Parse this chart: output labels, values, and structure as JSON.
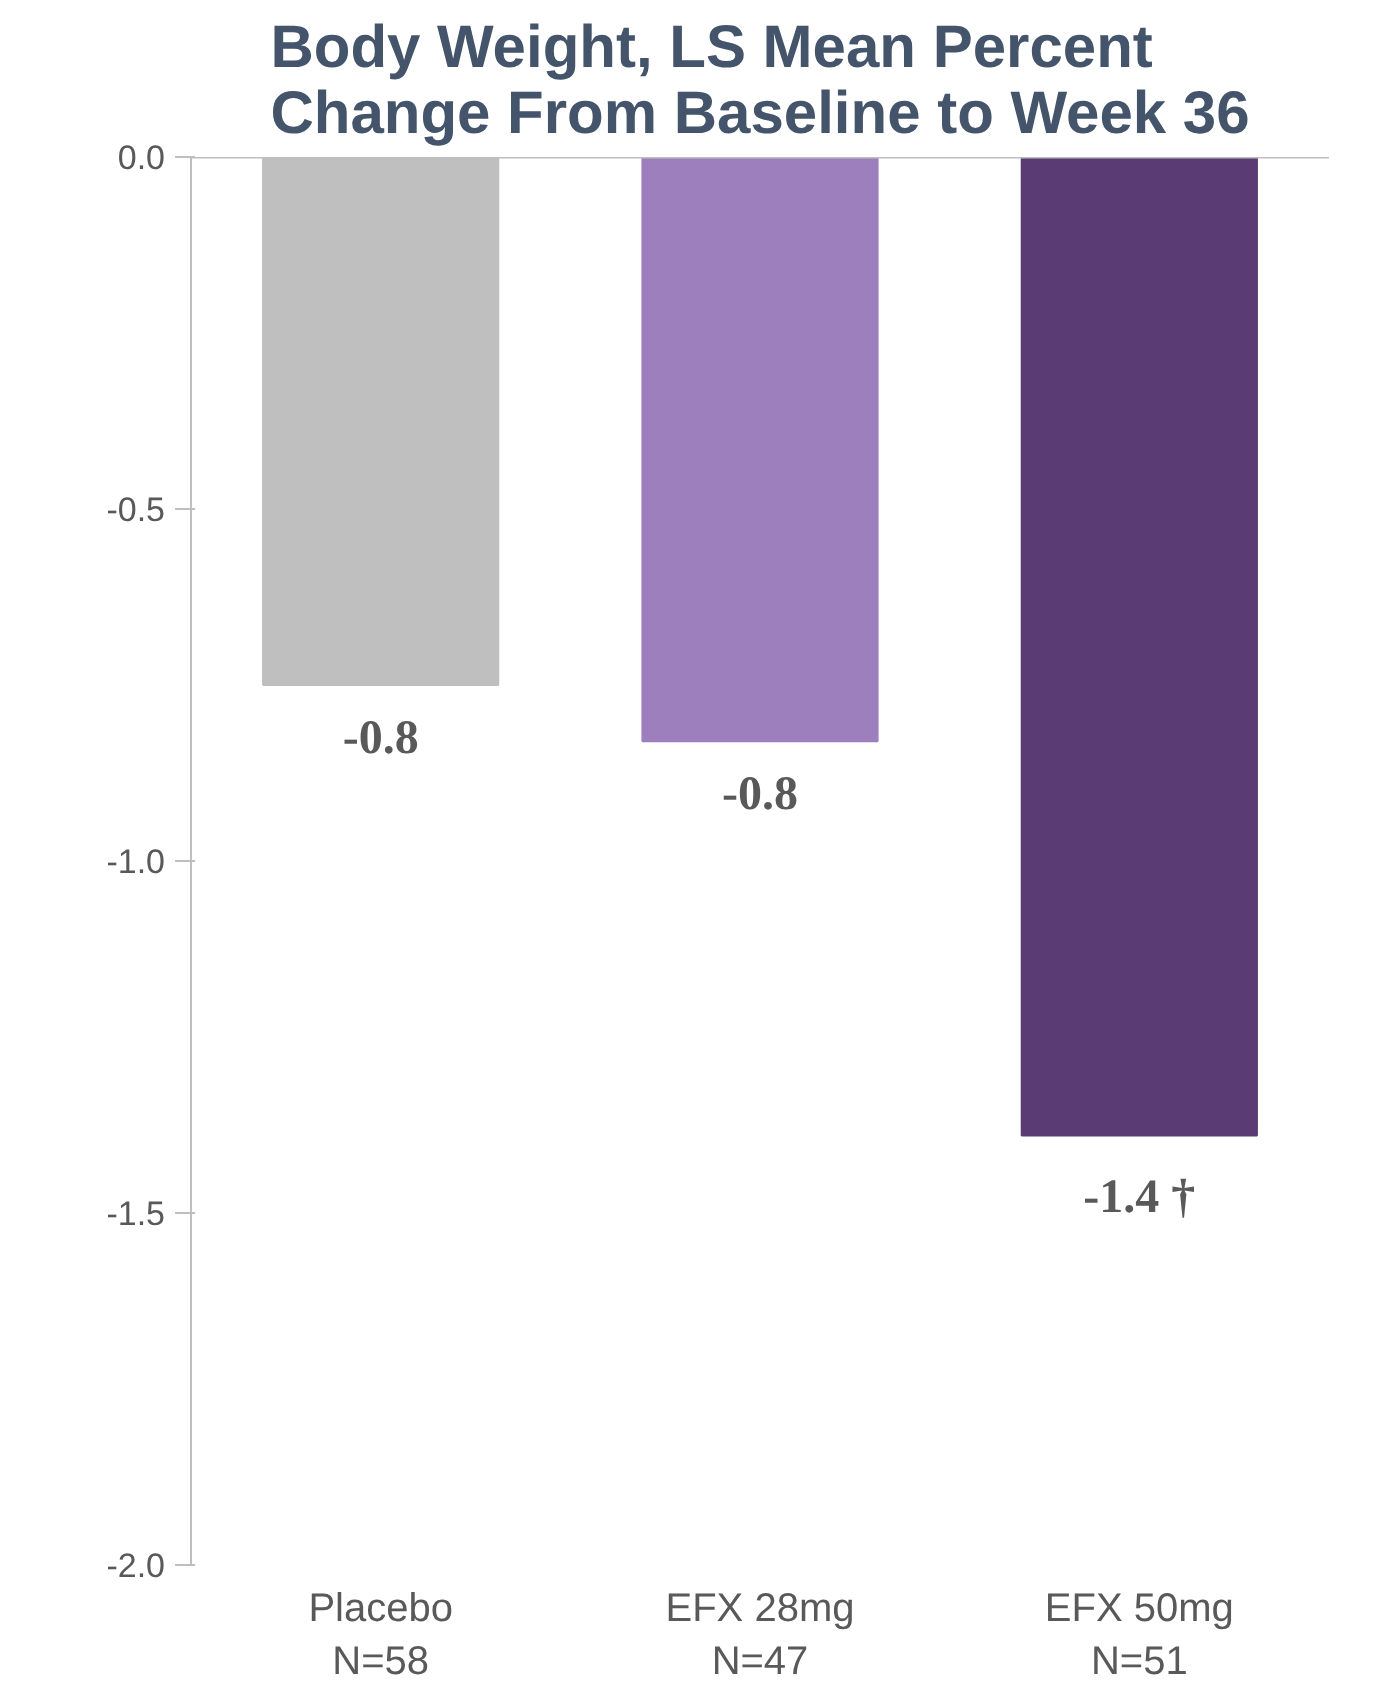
{
  "chart_data": {
    "type": "bar",
    "title": "Body Weight, LS Mean Percent\nChange From Baseline to Week 36",
    "categories": [
      "Placebo\nN=58",
      "EFX 28mg\nN=47",
      "EFX 50mg\nN=51"
    ],
    "values": [
      -0.75,
      -0.83,
      -1.39
    ],
    "colors": [
      "#bfbfbf",
      "#9e7fbd",
      "#5b3b73"
    ],
    "value_labels": [
      "-0.8",
      "-0.8",
      "-1.4 †"
    ],
    "ylim": [
      -2.0,
      0.0
    ],
    "yticks": [
      {
        "value": 0,
        "label": "0.0"
      },
      {
        "value": -0.5,
        "label": "-0.5"
      },
      {
        "value": -1.0,
        "label": "-1.0"
      },
      {
        "value": -1.5,
        "label": "-1.5"
      },
      {
        "value": -2.0,
        "label": "-2.0"
      }
    ],
    "grid": false
  }
}
